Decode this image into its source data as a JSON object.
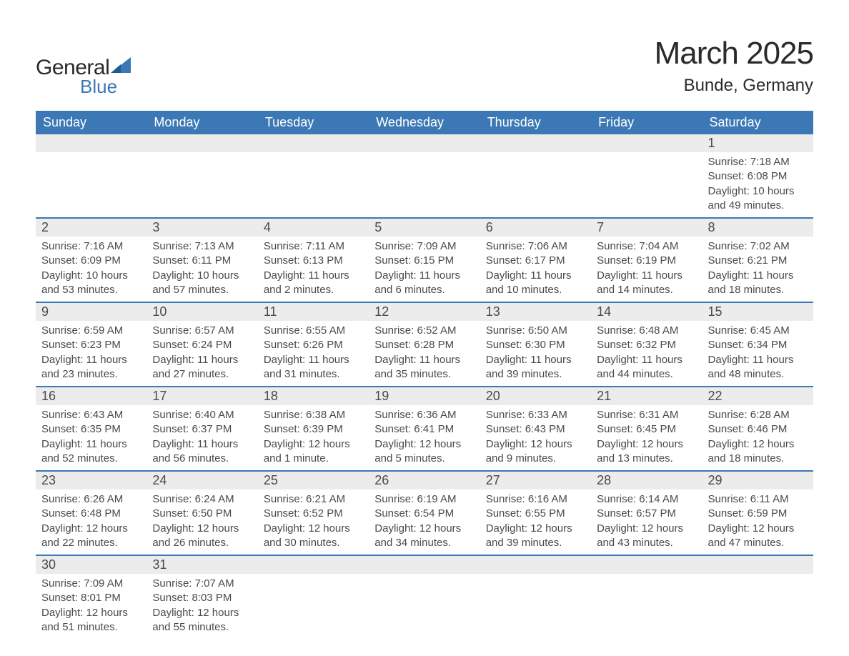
{
  "logo": {
    "text1": "General",
    "text2": "Blue",
    "text_color": "#2a2a2a",
    "blue_color": "#3b78b5"
  },
  "title": "March 2025",
  "location": "Bunde, Germany",
  "colors": {
    "header_bg": "#3b78b5",
    "header_text": "#ffffff",
    "daynum_bg": "#ececec",
    "row_divider": "#3b78b5",
    "body_text": "#4a4a4a",
    "page_bg": "#ffffff"
  },
  "typography": {
    "title_fontsize": 44,
    "location_fontsize": 24,
    "weekday_fontsize": 18,
    "daynum_fontsize": 18,
    "detail_fontsize": 15
  },
  "weekdays": [
    "Sunday",
    "Monday",
    "Tuesday",
    "Wednesday",
    "Thursday",
    "Friday",
    "Saturday"
  ],
  "weeks": [
    [
      null,
      null,
      null,
      null,
      null,
      null,
      {
        "n": "1",
        "sunrise": "Sunrise: 7:18 AM",
        "sunset": "Sunset: 6:08 PM",
        "dl1": "Daylight: 10 hours",
        "dl2": "and 49 minutes."
      }
    ],
    [
      {
        "n": "2",
        "sunrise": "Sunrise: 7:16 AM",
        "sunset": "Sunset: 6:09 PM",
        "dl1": "Daylight: 10 hours",
        "dl2": "and 53 minutes."
      },
      {
        "n": "3",
        "sunrise": "Sunrise: 7:13 AM",
        "sunset": "Sunset: 6:11 PM",
        "dl1": "Daylight: 10 hours",
        "dl2": "and 57 minutes."
      },
      {
        "n": "4",
        "sunrise": "Sunrise: 7:11 AM",
        "sunset": "Sunset: 6:13 PM",
        "dl1": "Daylight: 11 hours",
        "dl2": "and 2 minutes."
      },
      {
        "n": "5",
        "sunrise": "Sunrise: 7:09 AM",
        "sunset": "Sunset: 6:15 PM",
        "dl1": "Daylight: 11 hours",
        "dl2": "and 6 minutes."
      },
      {
        "n": "6",
        "sunrise": "Sunrise: 7:06 AM",
        "sunset": "Sunset: 6:17 PM",
        "dl1": "Daylight: 11 hours",
        "dl2": "and 10 minutes."
      },
      {
        "n": "7",
        "sunrise": "Sunrise: 7:04 AM",
        "sunset": "Sunset: 6:19 PM",
        "dl1": "Daylight: 11 hours",
        "dl2": "and 14 minutes."
      },
      {
        "n": "8",
        "sunrise": "Sunrise: 7:02 AM",
        "sunset": "Sunset: 6:21 PM",
        "dl1": "Daylight: 11 hours",
        "dl2": "and 18 minutes."
      }
    ],
    [
      {
        "n": "9",
        "sunrise": "Sunrise: 6:59 AM",
        "sunset": "Sunset: 6:23 PM",
        "dl1": "Daylight: 11 hours",
        "dl2": "and 23 minutes."
      },
      {
        "n": "10",
        "sunrise": "Sunrise: 6:57 AM",
        "sunset": "Sunset: 6:24 PM",
        "dl1": "Daylight: 11 hours",
        "dl2": "and 27 minutes."
      },
      {
        "n": "11",
        "sunrise": "Sunrise: 6:55 AM",
        "sunset": "Sunset: 6:26 PM",
        "dl1": "Daylight: 11 hours",
        "dl2": "and 31 minutes."
      },
      {
        "n": "12",
        "sunrise": "Sunrise: 6:52 AM",
        "sunset": "Sunset: 6:28 PM",
        "dl1": "Daylight: 11 hours",
        "dl2": "and 35 minutes."
      },
      {
        "n": "13",
        "sunrise": "Sunrise: 6:50 AM",
        "sunset": "Sunset: 6:30 PM",
        "dl1": "Daylight: 11 hours",
        "dl2": "and 39 minutes."
      },
      {
        "n": "14",
        "sunrise": "Sunrise: 6:48 AM",
        "sunset": "Sunset: 6:32 PM",
        "dl1": "Daylight: 11 hours",
        "dl2": "and 44 minutes."
      },
      {
        "n": "15",
        "sunrise": "Sunrise: 6:45 AM",
        "sunset": "Sunset: 6:34 PM",
        "dl1": "Daylight: 11 hours",
        "dl2": "and 48 minutes."
      }
    ],
    [
      {
        "n": "16",
        "sunrise": "Sunrise: 6:43 AM",
        "sunset": "Sunset: 6:35 PM",
        "dl1": "Daylight: 11 hours",
        "dl2": "and 52 minutes."
      },
      {
        "n": "17",
        "sunrise": "Sunrise: 6:40 AM",
        "sunset": "Sunset: 6:37 PM",
        "dl1": "Daylight: 11 hours",
        "dl2": "and 56 minutes."
      },
      {
        "n": "18",
        "sunrise": "Sunrise: 6:38 AM",
        "sunset": "Sunset: 6:39 PM",
        "dl1": "Daylight: 12 hours",
        "dl2": "and 1 minute."
      },
      {
        "n": "19",
        "sunrise": "Sunrise: 6:36 AM",
        "sunset": "Sunset: 6:41 PM",
        "dl1": "Daylight: 12 hours",
        "dl2": "and 5 minutes."
      },
      {
        "n": "20",
        "sunrise": "Sunrise: 6:33 AM",
        "sunset": "Sunset: 6:43 PM",
        "dl1": "Daylight: 12 hours",
        "dl2": "and 9 minutes."
      },
      {
        "n": "21",
        "sunrise": "Sunrise: 6:31 AM",
        "sunset": "Sunset: 6:45 PM",
        "dl1": "Daylight: 12 hours",
        "dl2": "and 13 minutes."
      },
      {
        "n": "22",
        "sunrise": "Sunrise: 6:28 AM",
        "sunset": "Sunset: 6:46 PM",
        "dl1": "Daylight: 12 hours",
        "dl2": "and 18 minutes."
      }
    ],
    [
      {
        "n": "23",
        "sunrise": "Sunrise: 6:26 AM",
        "sunset": "Sunset: 6:48 PM",
        "dl1": "Daylight: 12 hours",
        "dl2": "and 22 minutes."
      },
      {
        "n": "24",
        "sunrise": "Sunrise: 6:24 AM",
        "sunset": "Sunset: 6:50 PM",
        "dl1": "Daylight: 12 hours",
        "dl2": "and 26 minutes."
      },
      {
        "n": "25",
        "sunrise": "Sunrise: 6:21 AM",
        "sunset": "Sunset: 6:52 PM",
        "dl1": "Daylight: 12 hours",
        "dl2": "and 30 minutes."
      },
      {
        "n": "26",
        "sunrise": "Sunrise: 6:19 AM",
        "sunset": "Sunset: 6:54 PM",
        "dl1": "Daylight: 12 hours",
        "dl2": "and 34 minutes."
      },
      {
        "n": "27",
        "sunrise": "Sunrise: 6:16 AM",
        "sunset": "Sunset: 6:55 PM",
        "dl1": "Daylight: 12 hours",
        "dl2": "and 39 minutes."
      },
      {
        "n": "28",
        "sunrise": "Sunrise: 6:14 AM",
        "sunset": "Sunset: 6:57 PM",
        "dl1": "Daylight: 12 hours",
        "dl2": "and 43 minutes."
      },
      {
        "n": "29",
        "sunrise": "Sunrise: 6:11 AM",
        "sunset": "Sunset: 6:59 PM",
        "dl1": "Daylight: 12 hours",
        "dl2": "and 47 minutes."
      }
    ],
    [
      {
        "n": "30",
        "sunrise": "Sunrise: 7:09 AM",
        "sunset": "Sunset: 8:01 PM",
        "dl1": "Daylight: 12 hours",
        "dl2": "and 51 minutes."
      },
      {
        "n": "31",
        "sunrise": "Sunrise: 7:07 AM",
        "sunset": "Sunset: 8:03 PM",
        "dl1": "Daylight: 12 hours",
        "dl2": "and 55 minutes."
      },
      null,
      null,
      null,
      null,
      null
    ]
  ]
}
